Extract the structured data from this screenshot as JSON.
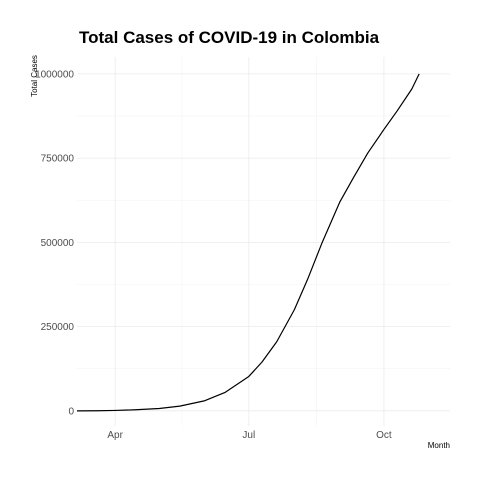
{
  "chart_data": {
    "type": "line",
    "title": "Total Cases of COVID-19 in Colombia",
    "xlabel": "Month",
    "ylabel": "Total Cases",
    "x_ticks": [
      {
        "date": "2020-04-01",
        "label": "Apr"
      },
      {
        "date": "2020-07-01",
        "label": "Jul"
      },
      {
        "date": "2020-10-01",
        "label": "Oct"
      }
    ],
    "y_ticks": [
      0,
      250000,
      500000,
      750000,
      1000000
    ],
    "xlim": [
      "2020-03-06",
      "2020-11-15"
    ],
    "ylim": [
      -45000,
      1050000
    ],
    "grid": true,
    "series": [
      {
        "color": "#000000",
        "x": [
          "2020-03-06",
          "2020-03-20",
          "2020-04-01",
          "2020-04-15",
          "2020-05-01",
          "2020-05-15",
          "2020-06-01",
          "2020-06-15",
          "2020-07-01",
          "2020-07-10",
          "2020-07-20",
          "2020-08-01",
          "2020-08-10",
          "2020-08-20",
          "2020-09-01",
          "2020-09-10",
          "2020-09-20",
          "2020-10-01",
          "2020-10-10",
          "2020-10-20",
          "2020-10-25"
        ],
        "y": [
          0,
          200,
          1100,
          3200,
          7000,
          14000,
          30000,
          55000,
          102000,
          145000,
          205000,
          300000,
          390000,
          500000,
          620000,
          690000,
          765000,
          835000,
          890000,
          955000,
          1000000
        ]
      }
    ]
  }
}
